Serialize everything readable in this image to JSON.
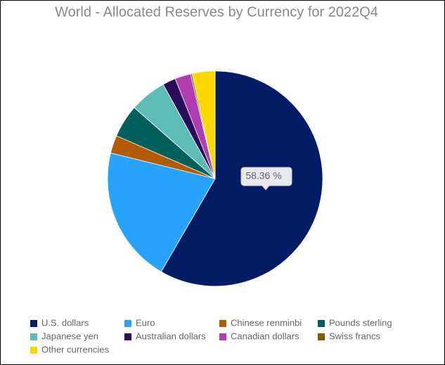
{
  "chart_data": {
    "type": "pie",
    "title": "World - Allocated Reserves by Currency for 2022Q4",
    "categories": [
      "U.S. dollars",
      "Euro",
      "Chinese renminbi",
      "Pounds sterling",
      "Japanese yen",
      "Australian dollars",
      "Canadian dollars",
      "Swiss francs",
      "Other currencies"
    ],
    "values": [
      58.36,
      20.47,
      2.69,
      4.95,
      5.51,
      1.97,
      2.38,
      0.23,
      3.44
    ],
    "value_labels": [
      "58.36 %",
      null,
      null,
      null,
      null,
      null,
      null,
      null,
      null
    ],
    "colors": [
      "#021c66",
      "#27a2fd",
      "#b25a00",
      "#02605c",
      "#5ebcb6",
      "#2b0b5c",
      "#b13cb2",
      "#7b6002",
      "#fdd800"
    ]
  }
}
